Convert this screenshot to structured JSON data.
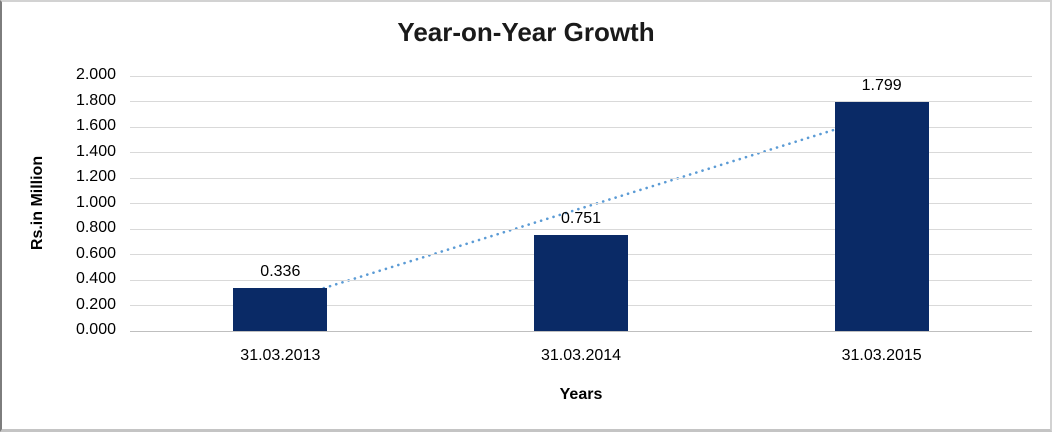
{
  "frame": {
    "background": "#ffffff",
    "border_color": "#d2d2d2"
  },
  "chart_data": {
    "type": "bar",
    "title": "Year-on-Year Growth",
    "xlabel": "Years",
    "ylabel": "Rs.in Million",
    "categories": [
      "31.03.2013",
      "31.03.2014",
      "31.03.2015"
    ],
    "values": [
      0.336,
      0.751,
      1.799
    ],
    "data_labels": [
      "0.336",
      "0.751",
      "1.799"
    ],
    "ylim": [
      0,
      2
    ],
    "ytick_step": 0.2,
    "ytick_labels": [
      "0.000",
      "0.200",
      "0.400",
      "0.600",
      "0.800",
      "1.000",
      "1.200",
      "1.400",
      "1.600",
      "1.800",
      "2.000"
    ],
    "grid": true,
    "legend": "none",
    "bar_color": "#0a2a66",
    "gridline_color": "#d9d9d9",
    "trendline": {
      "type": "linear",
      "style": "dotted",
      "color": "#5b9bd5",
      "start_value": 0.2305,
      "end_value": 1.6935
    }
  }
}
